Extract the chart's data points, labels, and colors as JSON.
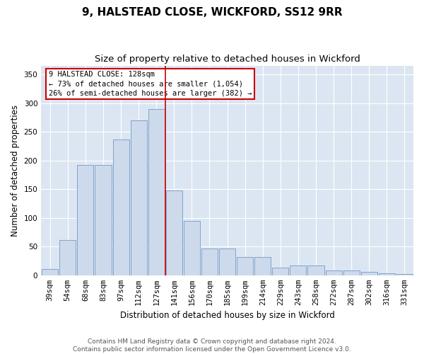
{
  "title": "9, HALSTEAD CLOSE, WICKFORD, SS12 9RR",
  "subtitle": "Size of property relative to detached houses in Wickford",
  "xlabel": "Distribution of detached houses by size in Wickford",
  "ylabel": "Number of detached properties",
  "categories": [
    "39sqm",
    "54sqm",
    "68sqm",
    "83sqm",
    "97sqm",
    "112sqm",
    "127sqm",
    "141sqm",
    "156sqm",
    "170sqm",
    "185sqm",
    "199sqm",
    "214sqm",
    "229sqm",
    "243sqm",
    "258sqm",
    "272sqm",
    "287sqm",
    "302sqm",
    "316sqm",
    "331sqm"
  ],
  "bar_values": [
    11,
    61,
    192,
    192,
    237,
    270,
    290,
    148,
    95,
    47,
    47,
    32,
    32,
    13,
    17,
    17,
    8,
    8,
    6,
    4,
    2
  ],
  "bar_color": "#cddaeb",
  "bar_edge_color": "#7399c6",
  "vline_x": 6.5,
  "vline_color": "#cc0000",
  "annotation_text": "9 HALSTEAD CLOSE: 128sqm\n← 73% of detached houses are smaller (1,054)\n26% of semi-detached houses are larger (382) →",
  "annotation_box_color": "#ffffff",
  "annotation_box_edge": "#cc0000",
  "ylim": [
    0,
    365
  ],
  "yticks": [
    0,
    50,
    100,
    150,
    200,
    250,
    300,
    350
  ],
  "plot_bg_color": "#dce6f2",
  "footer_line1": "Contains HM Land Registry data © Crown copyright and database right 2024.",
  "footer_line2": "Contains public sector information licensed under the Open Government Licence v3.0.",
  "title_fontsize": 11,
  "subtitle_fontsize": 9.5,
  "label_fontsize": 8.5,
  "tick_fontsize": 7.5,
  "footer_fontsize": 6.5
}
